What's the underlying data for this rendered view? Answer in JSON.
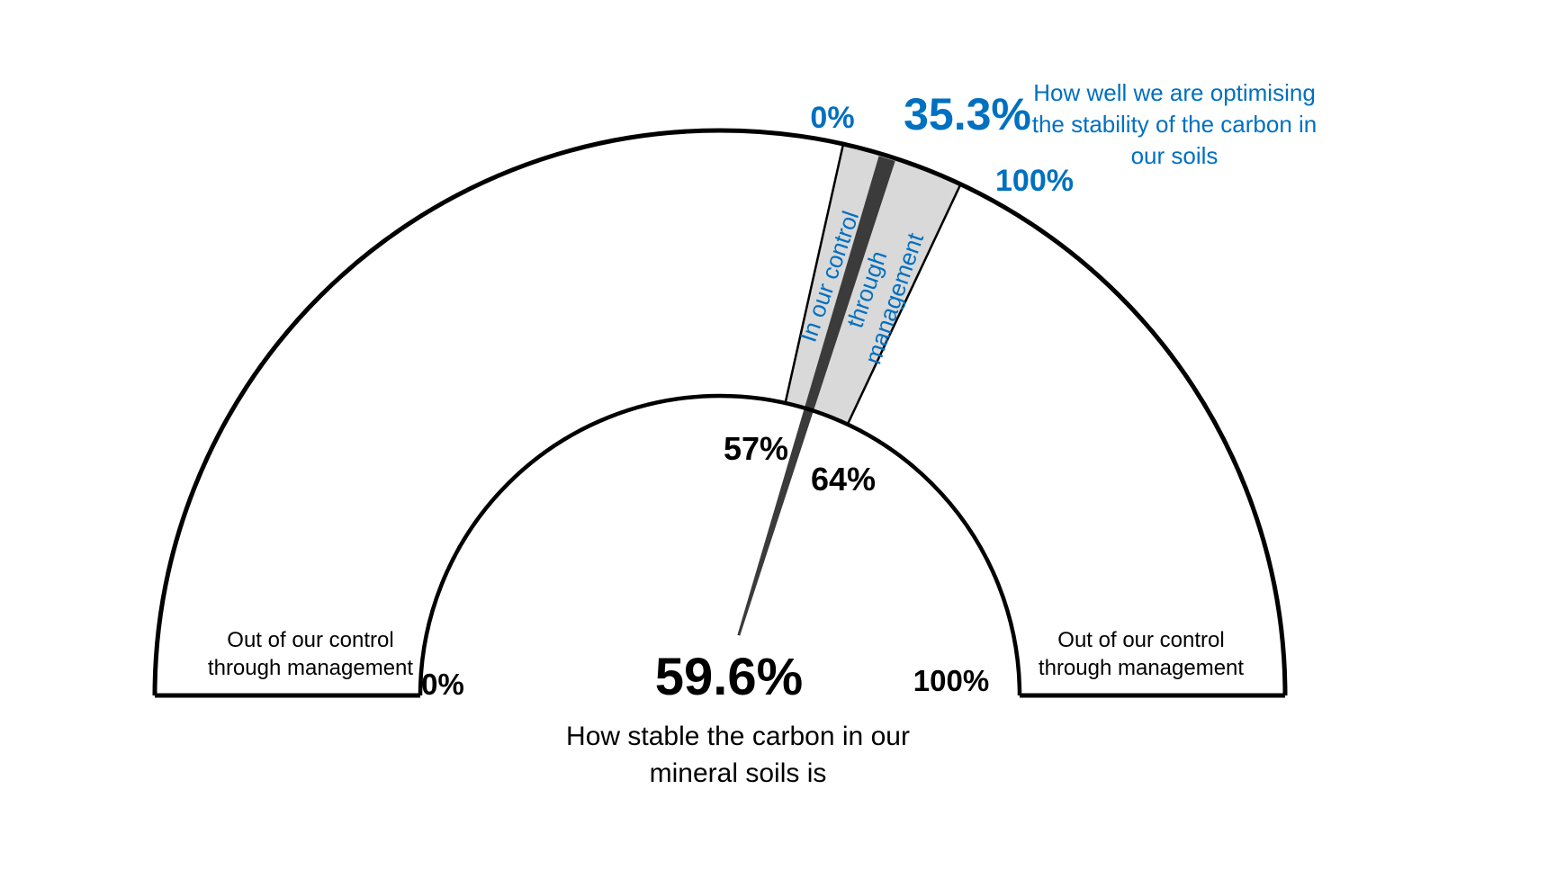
{
  "colors": {
    "accent_blue": "#0070C0",
    "stroke_black": "#000000",
    "band_fill": "#D9D9D9",
    "needle_gray": "#3B3B3B",
    "background": "#FFFFFF"
  },
  "outer_gauge": {
    "min_label": "0%",
    "value_label": "35.3%",
    "max_label": "100%",
    "title_lines": [
      "How well we are optimising",
      "the stability of the carbon in",
      "our soils"
    ],
    "band_start_label": "57%",
    "band_end_label": "64%",
    "band_label_lines": [
      "In our control",
      "through",
      "management"
    ]
  },
  "inner_gauge": {
    "min_label": "0%",
    "max_label": "100%",
    "value_label": "59.6%",
    "caption_lines": [
      "How stable the carbon in our",
      "mineral soils is"
    ],
    "left_region_lines": [
      "Out of our control",
      "through management"
    ],
    "right_region_lines": [
      "Out of our control",
      "through management"
    ]
  },
  "chart_data": {
    "type": "gauge",
    "layout": "semicircular half-donut gauge, 0% at left end, 100% at right end, needle from center",
    "min": 0,
    "max": 100,
    "needle_value": 59.6,
    "needle_caption": "How stable the carbon in our mineral soils is",
    "band": {
      "start": 57,
      "end": 64,
      "label": "In our control through management",
      "fill": "#D9D9D9"
    },
    "band_value": 35.3,
    "band_value_caption": "How well we are optimising the stability of the carbon in our soils",
    "band_scale_labels": {
      "min": "0%",
      "max": "100%"
    },
    "inner_scale_labels": {
      "min": "0%",
      "max": "100%"
    },
    "outside_band_label": "Out of our control through management",
    "legend_position": "none",
    "grid": false
  }
}
